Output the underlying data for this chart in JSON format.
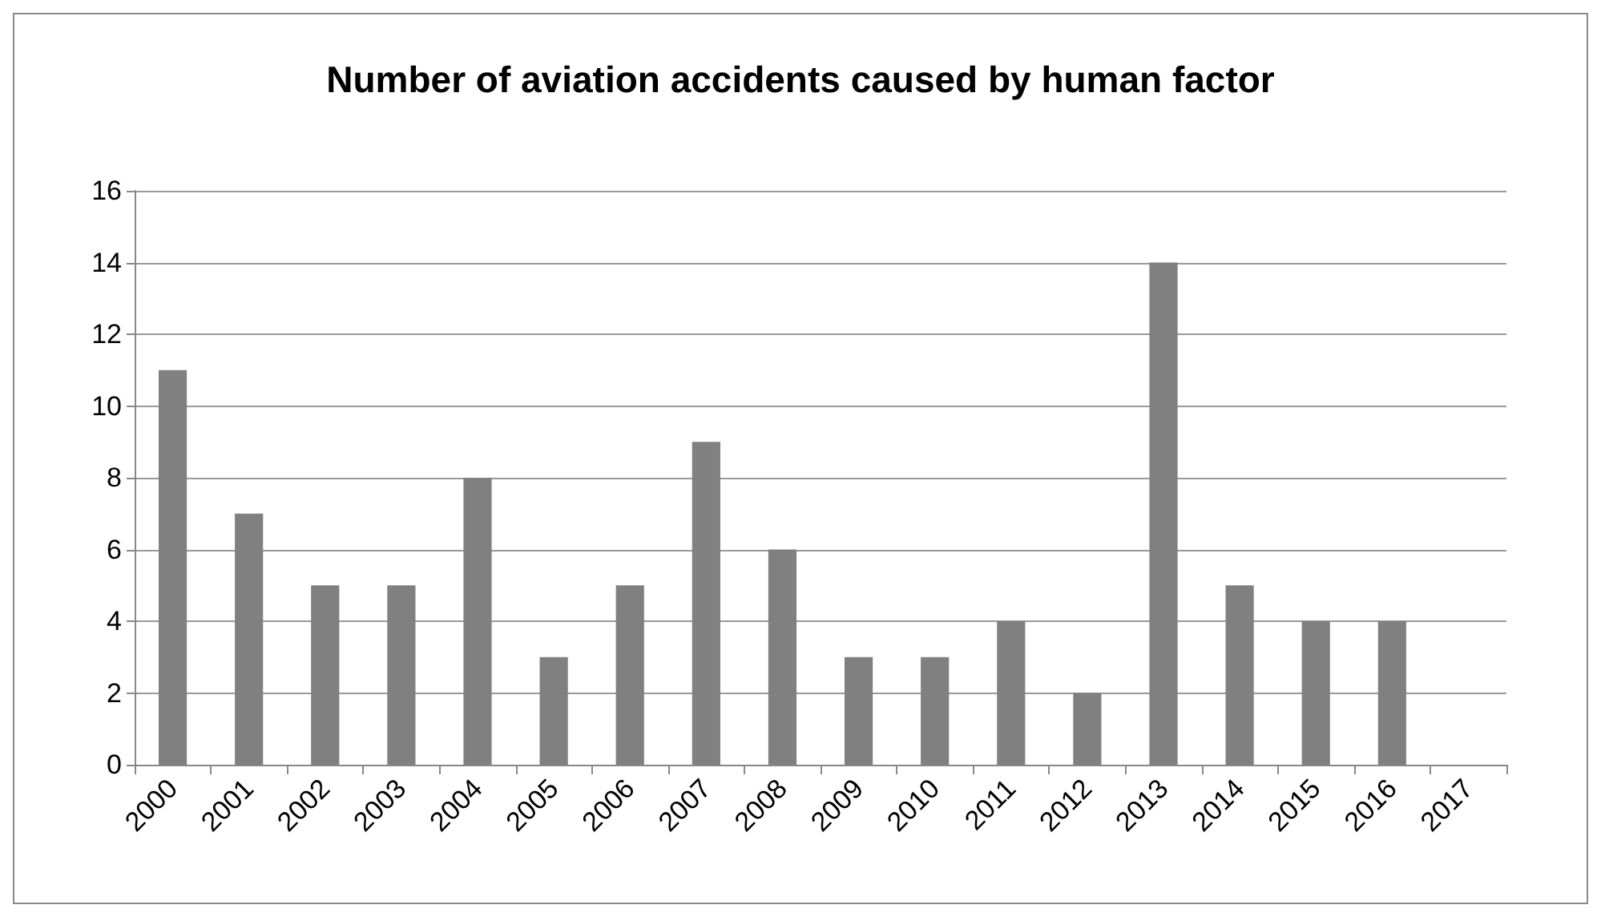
{
  "chart_data": {
    "type": "bar",
    "title": "Number of aviation accidents caused by human factor",
    "categories": [
      "2000",
      "2001",
      "2002",
      "2003",
      "2004",
      "2005",
      "2006",
      "2007",
      "2008",
      "2009",
      "2010",
      "2011",
      "2012",
      "2013",
      "2014",
      "2015",
      "2016",
      "2017"
    ],
    "values": [
      11,
      7,
      5,
      5,
      8,
      3,
      5,
      9,
      6,
      3,
      3,
      4,
      2,
      14,
      5,
      4,
      4,
      null
    ],
    "color": "#808080",
    "ylim": [
      0,
      16
    ],
    "yticks": [
      0,
      2,
      4,
      6,
      8,
      10,
      12,
      14,
      16
    ],
    "grid": "y"
  }
}
